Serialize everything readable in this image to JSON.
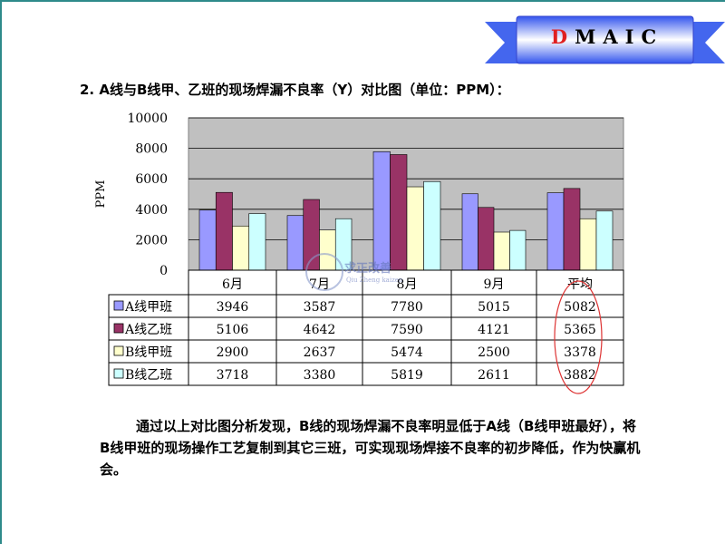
{
  "banner": {
    "letters": [
      "D",
      "M",
      "A",
      "I",
      "C"
    ],
    "highlight_color": "#e02020"
  },
  "title": "2. A线与B线甲、乙班的现场焊漏不良率（Y）对比图（单位：PPM）：",
  "conclusion": "通过以上对比图分析发现，B线的现场焊漏不良率明显低于A线（B线甲班最好），将B线甲班的现场操作工艺复制到其它三班，可实现现场焊接不良率的初步降低，作为快赢机会。",
  "watermark": {
    "title": "求正改善",
    "subtitle": "Qiu Zheng kaizen"
  },
  "chart_data": {
    "type": "bar",
    "categories": [
      "6月",
      "7月",
      "8月",
      "9月",
      "平均"
    ],
    "ylabel": "PPM",
    "ylim": [
      0,
      10000
    ],
    "yticks": [
      0,
      2000,
      4000,
      6000,
      8000,
      10000
    ],
    "grid": true,
    "legend": "data-table",
    "series": [
      {
        "name": "A线甲班",
        "color": "#9999ff",
        "values": [
          3946,
          3587,
          7780,
          5015,
          5082
        ]
      },
      {
        "name": "A线乙班",
        "color": "#993366",
        "values": [
          5106,
          4642,
          7590,
          4121,
          5365
        ]
      },
      {
        "name": "B线甲班",
        "color": "#ffffcc",
        "values": [
          2900,
          2637,
          5474,
          2500,
          3378
        ]
      },
      {
        "name": "B线乙班",
        "color": "#ccffff",
        "values": [
          3718,
          3380,
          5819,
          2611,
          3882
        ]
      }
    ],
    "highlight": "平均"
  }
}
